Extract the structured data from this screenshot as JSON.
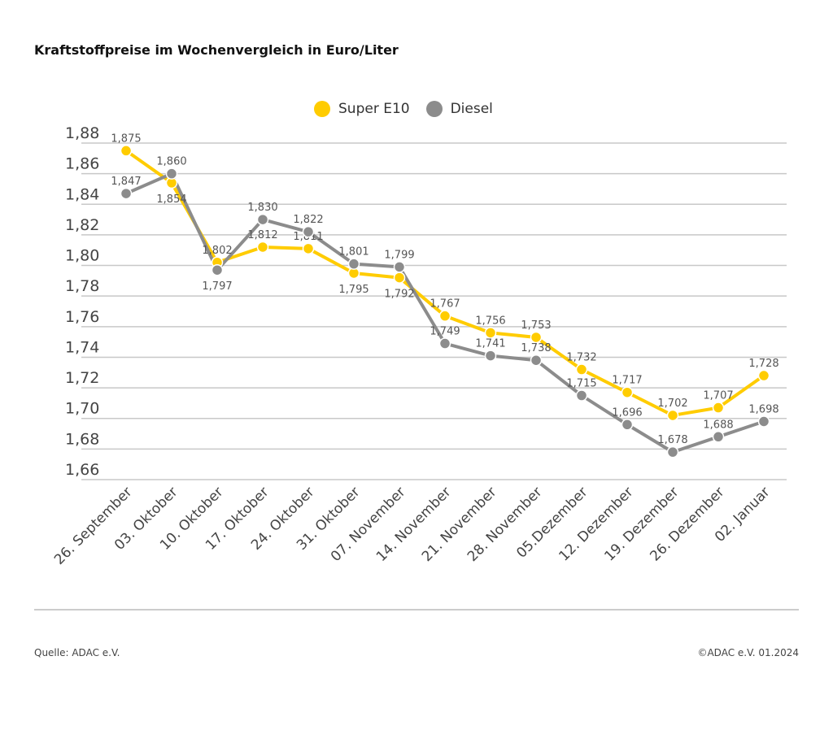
{
  "title": "Kraftstoffpreise im Wochenvergleich in Euro/Liter",
  "source": "Quelle: ADAC e.V.",
  "copyright": "©ADAC e.V. 01.2024",
  "chart_data": {
    "type": "line",
    "title": "Kraftstoffpreise im Wochenvergleich in Euro/Liter",
    "categories": [
      "26. September",
      "03. Oktober",
      "10. Oktober",
      "17. Oktober",
      "24. Oktober",
      "31. Oktober",
      "07. November",
      "14. November",
      "21. November",
      "28. November",
      "05.Dezember",
      "12. Dezember",
      "19. Dezember",
      "26. Dezember",
      "02. Januar"
    ],
    "ylim": [
      1.66,
      1.88
    ],
    "yticks": [
      "1,66",
      "1,68",
      "1,70",
      "1,72",
      "1,74",
      "1,76",
      "1,78",
      "1,80",
      "1,82",
      "1,84",
      "1,86",
      "1,88"
    ],
    "grid": true,
    "legend": "top-center",
    "series": [
      {
        "name": "Super E10",
        "color": "#FFCC00",
        "values": [
          1.875,
          1.854,
          1.802,
          1.812,
          1.811,
          1.795,
          1.792,
          1.767,
          1.756,
          1.753,
          1.732,
          1.717,
          1.702,
          1.707,
          1.728
        ],
        "labels": [
          "1,875",
          "1,854",
          "1,802",
          "1,812",
          "1,811",
          "1,795",
          "1,792",
          "1,767",
          "1,756",
          "1,753",
          "1,732",
          "1,717",
          "1,702",
          "1,707",
          "1,728"
        ]
      },
      {
        "name": "Diesel",
        "color": "#8C8C8C",
        "values": [
          1.847,
          1.86,
          1.797,
          1.83,
          1.822,
          1.801,
          1.799,
          1.749,
          1.741,
          1.738,
          1.715,
          1.696,
          1.678,
          1.688,
          1.698
        ],
        "labels": [
          "1,847",
          "1,860",
          "1,797",
          "1,830",
          "1,822",
          "1,801",
          "1,799",
          "1,749",
          "1,741",
          "1,738",
          "1,715",
          "1,696",
          "1,678",
          "1,688",
          "1,698"
        ]
      }
    ]
  }
}
